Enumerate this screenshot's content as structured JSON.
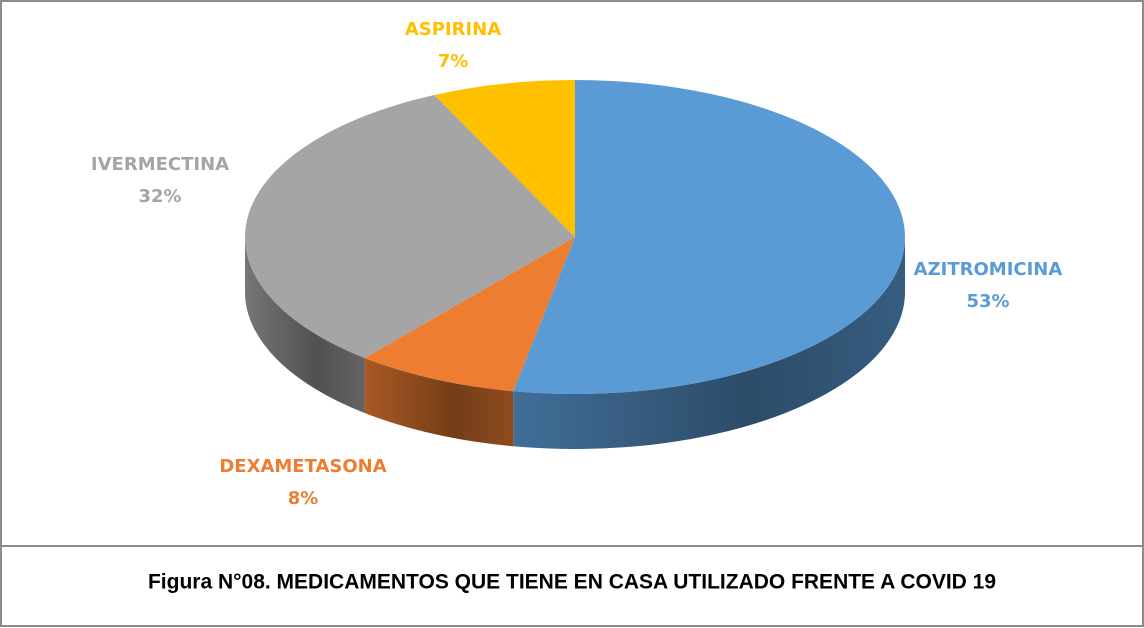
{
  "chart_data": {
    "type": "pie3d",
    "caption": "Figura N°08.  MEDICAMENTOS QUE TIENE EN CASA UTILIZADO FRENTE A COVID 19",
    "categories": [
      "AZITROMICINA",
      "DEXAMETASONA",
      "IVERMECTINA",
      "ASPIRINA"
    ],
    "values": [
      53,
      8,
      32,
      7
    ],
    "value_labels": [
      "53%",
      "8%",
      "32%",
      "7%"
    ],
    "colors": [
      "#5b9bd5",
      "#ed7d31",
      "#a5a5a5",
      "#ffc000"
    ]
  }
}
